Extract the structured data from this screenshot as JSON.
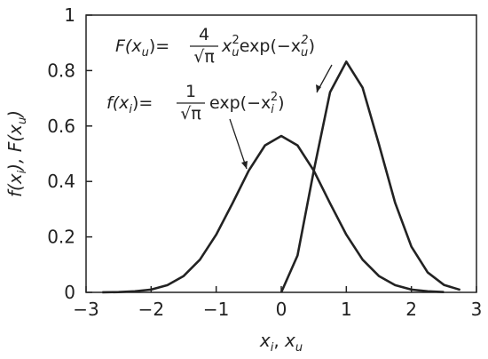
{
  "chart_data": {
    "type": "line",
    "x_label": {
      "a": "x",
      "a_sub": "i",
      "sep": ", ",
      "b": "x",
      "b_sub": "u"
    },
    "y_label": {
      "a": "f(x",
      "a_sub": "i",
      "mid": "), F(x",
      "b_sub": "u",
      "end": ")"
    },
    "annotations": [
      {
        "lhs": "F(x",
        "lhs_sub": "u",
        "eq": ")=",
        "numerator": "4",
        "denominator": "√π",
        "term": "x",
        "term_sub": "u",
        "term_sup": "2",
        "func": "exp(−x",
        "func_sub": "u",
        "func_sup": "2",
        "close": ")"
      },
      {
        "lhs": "f(x",
        "lhs_sub": "i",
        "eq": ")=",
        "numerator": "1",
        "denominator": "√π",
        "func": "exp(−x",
        "func_sub": "i",
        "func_sup": "2",
        "close": ")"
      }
    ],
    "x": [
      -2.75,
      -2.5,
      -2.25,
      -2,
      -1.75,
      -1.5,
      -1.25,
      -1,
      -0.75,
      -0.5,
      -0.25,
      0,
      0.25,
      0.5,
      0.75,
      1,
      1.25,
      1.5,
      1.75,
      2,
      2.25,
      2.5,
      2.75
    ],
    "series": [
      {
        "name": "f(x_i)",
        "color": "#222222",
        "values": [
          0.0003,
          0.001,
          0.004,
          0.01,
          0.026,
          0.059,
          0.118,
          0.208,
          0.321,
          0.439,
          0.53,
          0.564,
          0.53,
          0.439,
          0.321,
          0.208,
          0.118,
          0.059,
          0.026,
          0.01,
          0.004,
          0.001,
          null
        ]
      },
      {
        "name": "F(x_u)",
        "color": "#222222",
        "values": [
          null,
          null,
          null,
          null,
          null,
          null,
          null,
          null,
          null,
          null,
          null,
          0,
          0.133,
          0.439,
          0.722,
          0.832,
          0.738,
          0.535,
          0.323,
          0.165,
          0.072,
          0.027,
          0.009
        ]
      }
    ],
    "xlim": [
      -3,
      3
    ],
    "ylim": [
      0,
      1
    ],
    "xticks": [
      {
        "value": -3,
        "label": "−3"
      },
      {
        "value": -2,
        "label": "−2"
      },
      {
        "value": -1,
        "label": "−1"
      },
      0,
      1,
      2,
      3
    ],
    "yticks": [
      0,
      0.2,
      0.4,
      0.6,
      0.8,
      1
    ]
  }
}
